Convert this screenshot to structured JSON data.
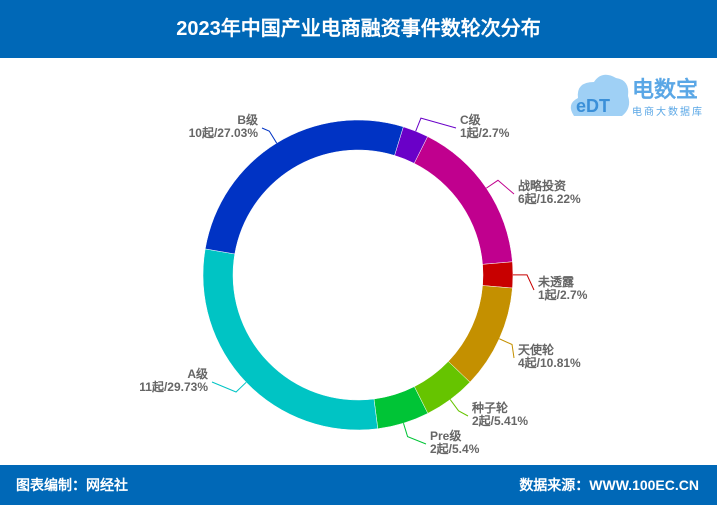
{
  "header": {
    "title": "2023年中国产业电商融资事件数轮次分布"
  },
  "footer": {
    "editor": "图表编制：网经社",
    "source": "数据来源：WWW.100EC.CN"
  },
  "logo": {
    "name": "电数宝",
    "tagline": "电商大数据库",
    "mark": "eDT"
  },
  "chart_data": {
    "type": "pie",
    "donut": true,
    "title": "2023年中国产业电商融资事件数轮次分布",
    "slices": [
      {
        "name": "C级",
        "count": 1,
        "label": "1起/2.7%",
        "percent": 2.7,
        "color": "#6a00c8"
      },
      {
        "name": "战略投资",
        "count": 6,
        "label": "6起/16.22%",
        "percent": 16.22,
        "color": "#c0008e"
      },
      {
        "name": "未透露",
        "count": 1,
        "label": "1起/2.7%",
        "percent": 2.7,
        "color": "#c80000"
      },
      {
        "name": "天使轮",
        "count": 4,
        "label": "4起/10.81%",
        "percent": 10.81,
        "color": "#c49000"
      },
      {
        "name": "种子轮",
        "count": 2,
        "label": "2起/5.41%",
        "percent": 5.41,
        "color": "#66c400"
      },
      {
        "name": "Pre级",
        "count": 2,
        "label": "2起/5.4%",
        "percent": 5.4,
        "color": "#00c436"
      },
      {
        "name": "A级",
        "count": 11,
        "label": "11起/29.73%",
        "percent": 29.73,
        "color": "#00c4c4"
      },
      {
        "name": "B级",
        "count": 10,
        "label": "10起/27.03%",
        "percent": 27.03,
        "color": "#0033c4"
      }
    ]
  }
}
